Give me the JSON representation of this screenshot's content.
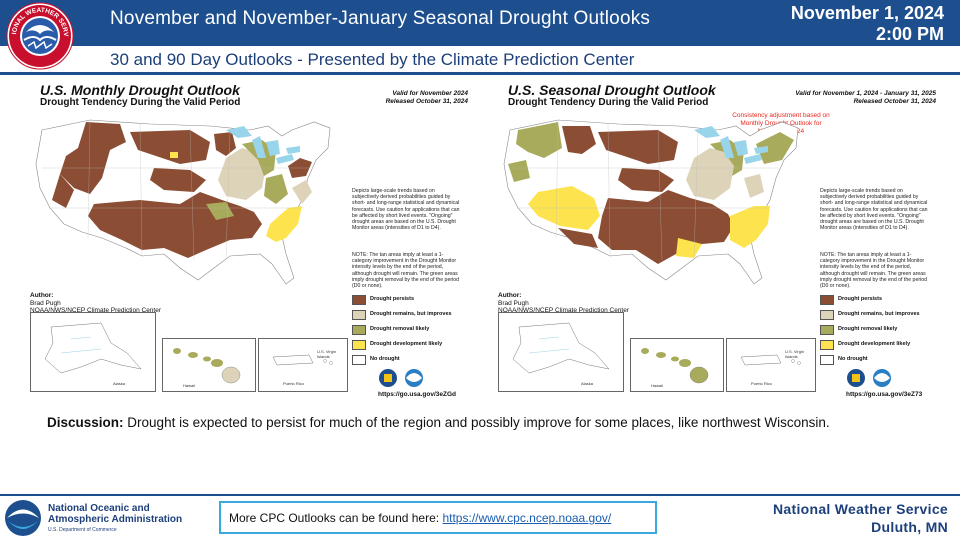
{
  "header": {
    "title": "November and November-January Seasonal Drought Outlooks",
    "subtitle": "30 and 90 Day Outlooks - Presented by the Climate Prediction Center",
    "date": "November 1, 2024",
    "time": "2:00 PM",
    "logo_text": "NATIONAL WEATHER SERVICE"
  },
  "colors": {
    "persist": "#8b4e34",
    "remains_improves": "#ddd3b9",
    "removal": "#a8ab5b",
    "development": "#fde44e",
    "no_drought": "#ffffff",
    "water": "#99d5ea",
    "header_blue": "#1d4f8f"
  },
  "maps": {
    "monthly": {
      "title": "U.S. Monthly Drought Outlook",
      "subtitle": "Drought Tendency During the Valid Period",
      "valid": "Valid for November 2024",
      "released": "Released October 31, 2024",
      "note": "",
      "url": "https://go.usa.gov/3eZGd"
    },
    "seasonal": {
      "title": "U.S. Seasonal Drought Outlook",
      "subtitle": "Drought Tendency During the Valid Period",
      "valid": "Valid for November 1, 2024 - January 31, 2025",
      "released": "Released October 31, 2024",
      "note": "Consistency adjustment based on Monthly Drought Outlook for November 2024",
      "url": "https://go.usa.gov/3eZ73"
    },
    "description": "Depicts large-scale trends based on subjectively derived probabilities guided by short- and long-range statistical and dynamical forecasts. Use caution for applications that can be affected by short lived events. \"Ongoing\" drought areas are based on the U.S. Drought Monitor areas (intensities of D1 to D4).",
    "tan_note": "NOTE: The tan areas imply at least a 1-category improvement in the Drought Monitor intensity levels by the end of the period, although drought will remain. The green areas imply drought removal by the end of the period (D0 or none).",
    "author_label": "Author:",
    "author_name": "Brad Pugh",
    "author_org": "NOAA/NWS/NCEP Climate Prediction Center",
    "legend": [
      {
        "label": "Drought persists",
        "color_key": "persist"
      },
      {
        "label": "Drought remains, but improves",
        "color_key": "remains_improves"
      },
      {
        "label": "Drought removal likely",
        "color_key": "removal"
      },
      {
        "label": "Drought development likely",
        "color_key": "development"
      },
      {
        "label": "No drought",
        "color_key": "no_drought"
      }
    ],
    "inset_labels": {
      "alaska": "Alaska",
      "hawaii": "Hawaii",
      "pr": "Puerto Rico",
      "vi": "U.S. Virgin Islands"
    }
  },
  "discussion": {
    "label": "Discussion:",
    "text": "Drought is expected to persist for much of the region and possibly improve for some places, like northwest Wisconsin."
  },
  "footer": {
    "noaa_name_line1": "National Oceanic and",
    "noaa_name_line2": "Atmospheric Administration",
    "noaa_dept": "U.S. Department of Commerce",
    "cpc_text": "More CPC Outlooks can be found here:",
    "cpc_link": "https://www.cpc.ncep.noaa.gov/",
    "nws_name": "National Weather Service",
    "office": "Duluth, MN",
    "noaa_logo_text": "NOAA"
  }
}
